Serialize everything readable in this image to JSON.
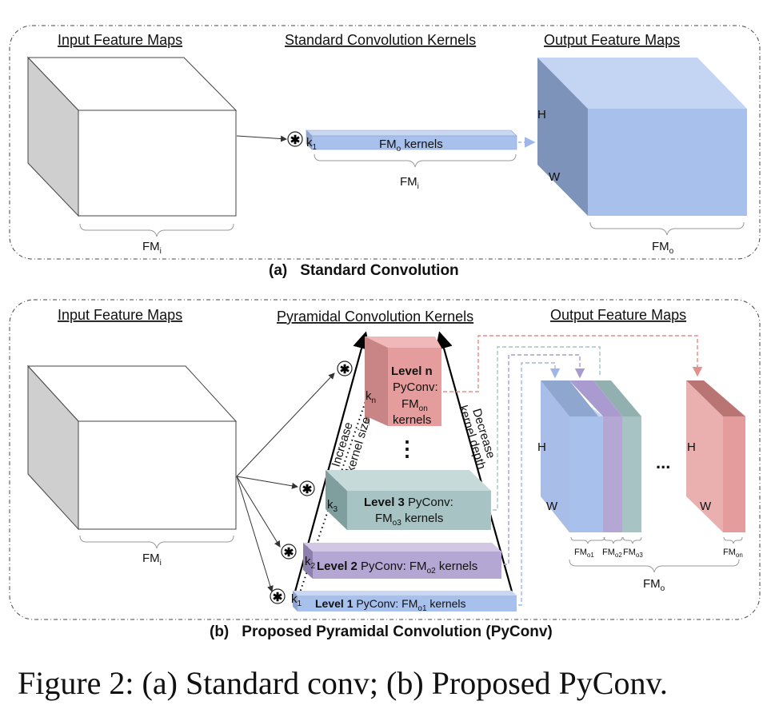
{
  "panel_a": {
    "heading_input": "Input Feature Maps",
    "heading_kernels": "Standard Convolution Kernels",
    "heading_output": "Output Feature Maps",
    "fm_i": "FM",
    "fm_i_sub": "i",
    "kernel_k": "k",
    "kernel_k_sub": "1",
    "kernel_text": "FM",
    "kernel_text_sub": "o",
    "kernel_text_tail": " kernels",
    "kernel_brace": "FM",
    "kernel_brace_sub": "i",
    "out_h": "H",
    "out_w": "W",
    "fm_o": "FM",
    "fm_o_sub": "o",
    "caption_tag": "(a)",
    "caption": "Standard Convolution"
  },
  "panel_b": {
    "heading_input": "Input Feature Maps",
    "heading_kernels": "Pyramidal Convolution Kernels",
    "heading_output": "Output Feature Maps",
    "fm_i": "FM",
    "fm_i_sub": "i",
    "increase": "Increase",
    "increase2": "kernel size",
    "decrease": "Decrease",
    "decrease2": "kernel depth",
    "level_n": "Level n",
    "level_n_l2": "PyConv:",
    "level_n_l3": "FM",
    "level_n_l3_sub": "on",
    "level_n_l4": "kernels",
    "kn": "k",
    "kn_sub": "n",
    "vdots": "⋮",
    "level3": "Level 3",
    "level3_rest": " PyConv:",
    "level3_l2": "FM",
    "level3_l2_sub": "o3",
    "level3_l2_tail": " kernels",
    "k3": "k",
    "k3_sub": "3",
    "level2": "Level 2",
    "level2_rest": " PyConv: FM",
    "level2_sub": "o2",
    "level2_tail": " kernels",
    "k2": "k",
    "k2_sub": "2",
    "level1": "Level 1",
    "level1_rest": " PyConv: FM",
    "level1_sub": "o1",
    "level1_tail": " kernels",
    "k1": "k",
    "k1_sub": "1",
    "out_h": "H",
    "out_w": "W",
    "out_h2": "H",
    "out_w2": "W",
    "ellipsis": "...",
    "fmo1": "FM",
    "fmo1_sub": "o1",
    "fmo2": "FM",
    "fmo2_sub": "o2",
    "fmo3": "FM",
    "fmo3_sub": "o3",
    "fmon": "FM",
    "fmon_sub": "on",
    "fm_o": "FM",
    "fm_o_sub": "o",
    "caption_tag": "(b)",
    "caption": "Proposed Pyramidal Convolution (PyConv)"
  },
  "figure_caption": "Figure 2: (a) Standard conv; (b) Proposed PyConv.",
  "colors": {
    "gray_face": "#cfcfcf",
    "blue": "#a8c0ec",
    "blue_dark": "#7e93b9",
    "purple": "#b4a7d3",
    "teal": "#a7c3c3",
    "red": "#e49c9c",
    "red_dark": "#b97474"
  }
}
